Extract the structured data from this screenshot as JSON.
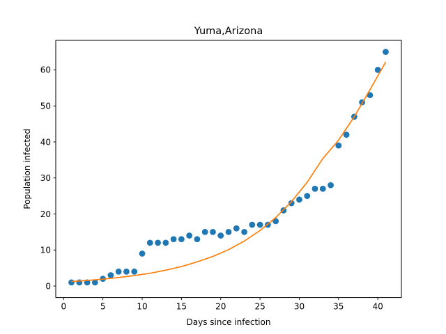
{
  "chart_data": {
    "type": "scatter",
    "title": "Yuma,Arizona",
    "xlabel": "Days since infection",
    "ylabel": "Population infected",
    "xlim": [
      -1,
      43
    ],
    "ylim": [
      -3.2,
      68.2
    ],
    "xticks": [
      0,
      5,
      10,
      15,
      20,
      25,
      30,
      35,
      40
    ],
    "yticks": [
      0,
      10,
      20,
      30,
      40,
      50,
      60
    ],
    "grid": false,
    "legend": "none",
    "series": [
      {
        "kind": "scatter",
        "color": "#1f77b4",
        "x": [
          1,
          2,
          3,
          4,
          5,
          6,
          7,
          8,
          9,
          10,
          11,
          12,
          13,
          14,
          15,
          16,
          17,
          18,
          19,
          20,
          21,
          22,
          23,
          24,
          25,
          26,
          27,
          28,
          29,
          30,
          31,
          32,
          33,
          34,
          35,
          36,
          37,
          38,
          39,
          40,
          41
        ],
        "y": [
          1,
          1,
          1,
          1,
          2,
          3,
          4,
          4,
          4,
          9,
          12,
          12,
          12,
          13,
          13,
          14,
          13,
          15,
          15,
          14,
          15,
          16,
          15,
          17,
          17,
          17,
          18,
          21,
          23,
          24,
          25,
          27,
          27,
          28,
          39,
          42,
          47,
          51,
          53,
          60,
          65
        ]
      },
      {
        "kind": "line",
        "color": "#ff7f0e",
        "x": [
          1,
          3,
          5,
          7,
          9,
          11,
          13,
          15,
          17,
          19,
          21,
          23,
          25,
          27,
          29,
          31,
          33,
          35,
          37,
          39,
          41
        ],
        "y": [
          1.25,
          1.55,
          1.9,
          2.35,
          2.9,
          3.55,
          4.4,
          5.4,
          6.7,
          8.2,
          10.1,
          12.5,
          15.4,
          19.0,
          23.4,
          28.8,
          35.4,
          40.5,
          47.0,
          54.5,
          62.2
        ]
      }
    ]
  }
}
